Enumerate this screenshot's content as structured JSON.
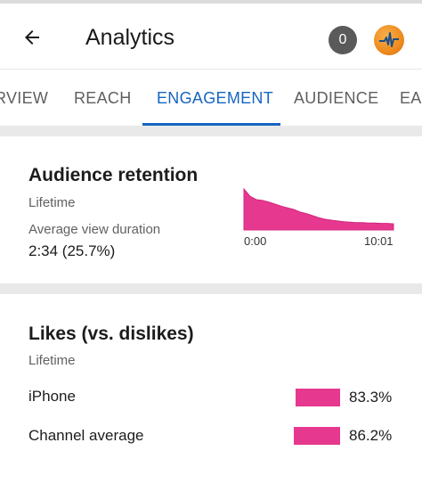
{
  "appbar": {
    "title": "Analytics",
    "notification_count": "0",
    "back_icon": "arrow-left-icon",
    "avatar_icon": "avatar"
  },
  "tabs": [
    {
      "label": "RVIEW",
      "active": false
    },
    {
      "label": "REACH",
      "active": false
    },
    {
      "label": "ENGAGEMENT",
      "active": true
    },
    {
      "label": "AUDIENCE",
      "active": false
    },
    {
      "label": "EA",
      "active": false
    }
  ],
  "retention": {
    "title": "Audience retention",
    "period": "Lifetime",
    "avg_label": "Average view duration",
    "avg_value": "2:34 (25.7%)",
    "x_start": "0:00",
    "x_end": "10:01"
  },
  "likes": {
    "title": "Likes (vs. dislikes)",
    "period": "Lifetime",
    "rows": [
      {
        "label": "iPhone",
        "value": "83.3%"
      },
      {
        "label": "Channel average",
        "value": "86.2%"
      }
    ]
  },
  "colors": {
    "accent": "#1565c0",
    "bar": "#e6388f"
  },
  "chart_data": [
    {
      "type": "area",
      "x_tick_labels": [
        "0:00",
        "10:01"
      ],
      "values": [
        1.0,
        0.82,
        0.74,
        0.72,
        0.68,
        0.63,
        0.58,
        0.54,
        0.5,
        0.44,
        0.4,
        0.35,
        0.3,
        0.26,
        0.24,
        0.22,
        0.2,
        0.19,
        0.18,
        0.18,
        0.17,
        0.17,
        0.16,
        0.16,
        0.15
      ]
    },
    {
      "type": "bar",
      "categories": [
        "iPhone",
        "Channel average"
      ],
      "values": [
        83.3,
        86.2
      ]
    }
  ]
}
